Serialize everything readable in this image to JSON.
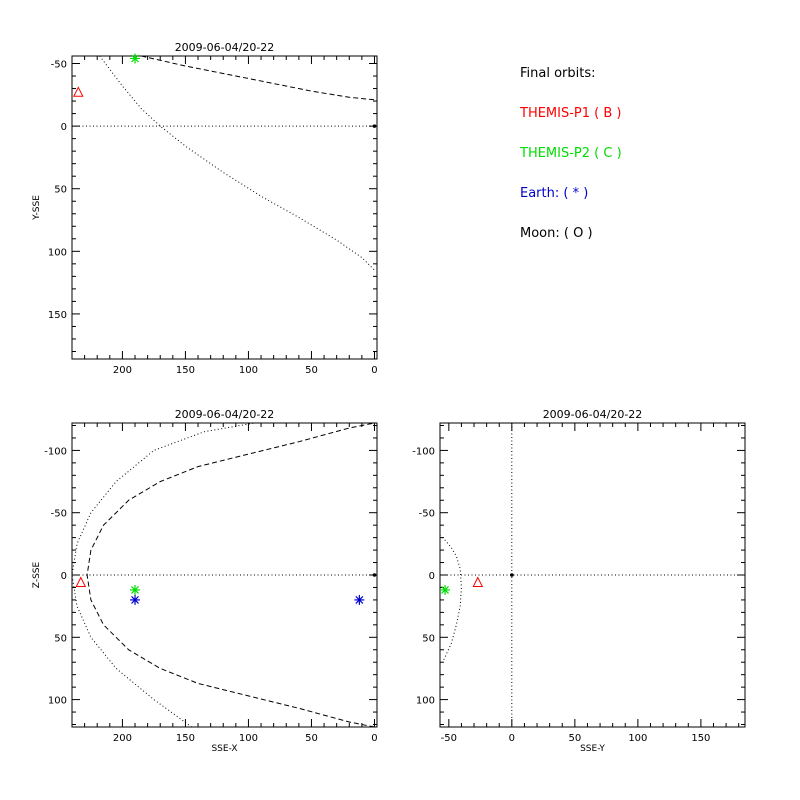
{
  "legend": {
    "heading": "Final orbits:",
    "items": [
      {
        "label": "THEMIS-P1 ( B )",
        "color": "#ff0000"
      },
      {
        "label": "THEMIS-P2 ( C )",
        "color": "#00dd00"
      },
      {
        "label": "Earth: ( * )",
        "color": "#0000cc"
      },
      {
        "label": "Moon: ( O )",
        "color": "#000000"
      }
    ]
  },
  "chart_data": [
    {
      "type": "scatter",
      "title": "2009-06-04/20-22",
      "xlabel": "",
      "ylabel": "Y-SSE",
      "xlim": [
        240,
        -2
      ],
      "ylim": [
        -56,
        186
      ],
      "xticks": [
        200,
        150,
        100,
        50,
        0
      ],
      "yticks": [
        -50,
        0,
        50,
        100,
        150
      ],
      "points": [
        {
          "name": "THEMIS-P1",
          "marker": "triangle",
          "color": "#ff0000",
          "x": 235,
          "y": -27
        },
        {
          "name": "THEMIS-P2",
          "marker": "asterisk",
          "color": "#00dd00",
          "x": 190,
          "y": -54
        },
        {
          "name": "Earth",
          "marker": "dot",
          "color": "#000000",
          "x": 0,
          "y": 0
        }
      ],
      "curves": [
        {
          "style": "dashed",
          "x": [
            185,
            150,
            100,
            50,
            20,
            0
          ],
          "y": [
            -56,
            -48,
            -38,
            -28,
            -23,
            -21
          ]
        },
        {
          "style": "dotted",
          "x": [
            218,
            200,
            185,
            170,
            150,
            120,
            90,
            60,
            30,
            10,
            0
          ],
          "y": [
            -56,
            -32,
            -14,
            0,
            16,
            37,
            56,
            73,
            91,
            105,
            115
          ]
        },
        {
          "style": "dotted",
          "x": [
            240,
            -2
          ],
          "y": [
            0,
            0
          ]
        }
      ]
    },
    {
      "type": "scatter",
      "title": "2009-06-04/20-22",
      "xlabel": "SSE-X",
      "ylabel": "Z-SSE",
      "xlim": [
        240,
        -2
      ],
      "ylim": [
        -122,
        122
      ],
      "xticks": [
        200,
        150,
        100,
        50,
        0
      ],
      "yticks": [
        100,
        50,
        0,
        -50,
        -100
      ],
      "points": [
        {
          "name": "THEMIS-P1",
          "marker": "triangle",
          "color": "#ff0000",
          "x": 233,
          "y": 6
        },
        {
          "name": "THEMIS-P2",
          "marker": "asterisk",
          "color": "#00dd00",
          "x": 190,
          "y": 12
        },
        {
          "name": "Earth",
          "marker": "asterisk",
          "color": "#0000cc",
          "x": 190,
          "y": 20
        },
        {
          "name": "Earth",
          "marker": "asterisk",
          "color": "#0000cc",
          "x": 12,
          "y": 20
        },
        {
          "name": "origin",
          "marker": "dot",
          "color": "#000000",
          "x": 0,
          "y": 0
        }
      ],
      "curves": [
        {
          "style": "dashed",
          "x": [
            0,
            20,
            60,
            100,
            140,
            170,
            195,
            215,
            225,
            228,
            225,
            215,
            195,
            170,
            140,
            100,
            60,
            20,
            0
          ],
          "y": [
            122,
            118,
            107,
            97,
            87,
            75,
            60,
            40,
            20,
            0,
            -20,
            -40,
            -60,
            -75,
            -87,
            -97,
            -107,
            -118,
            -122
          ]
        },
        {
          "style": "dotted",
          "x": [
            145,
            175,
            205,
            225,
            236,
            240,
            236,
            225,
            205,
            175,
            135,
            95
          ],
          "y": [
            122,
            100,
            75,
            50,
            25,
            0,
            -25,
            -50,
            -75,
            -100,
            -115,
            -122
          ]
        },
        {
          "style": "dotted",
          "x": [
            240,
            -2
          ],
          "y": [
            0,
            0
          ]
        }
      ]
    },
    {
      "type": "scatter",
      "title": "2009-06-04/20-22",
      "xlabel": "SSE-Y",
      "ylabel": "",
      "xlim": [
        -57,
        185
      ],
      "ylim": [
        -122,
        122
      ],
      "xticks": [
        -50,
        0,
        50,
        100,
        150
      ],
      "yticks": [
        100,
        50,
        0,
        -50,
        -100
      ],
      "points": [
        {
          "name": "THEMIS-P1",
          "marker": "triangle",
          "color": "#ff0000",
          "x": -27,
          "y": 6
        },
        {
          "name": "THEMIS-P2",
          "marker": "asterisk",
          "color": "#00dd00",
          "x": -53,
          "y": 12
        },
        {
          "name": "Earth",
          "marker": "dot",
          "color": "#000000",
          "x": 0,
          "y": 0
        }
      ],
      "curves": [
        {
          "style": "dotted",
          "x": [
            -54,
            -48,
            -44,
            -41,
            -40,
            -41,
            -44,
            -48,
            -53,
            -57
          ],
          "y": [
            68,
            55,
            40,
            25,
            10,
            -5,
            -15,
            -22,
            -28,
            -32
          ]
        },
        {
          "style": "dotted",
          "x": [
            -57,
            185
          ],
          "y": [
            0,
            0
          ]
        },
        {
          "style": "dotted",
          "x": [
            0,
            0
          ],
          "y": [
            -122,
            122
          ]
        }
      ]
    }
  ]
}
